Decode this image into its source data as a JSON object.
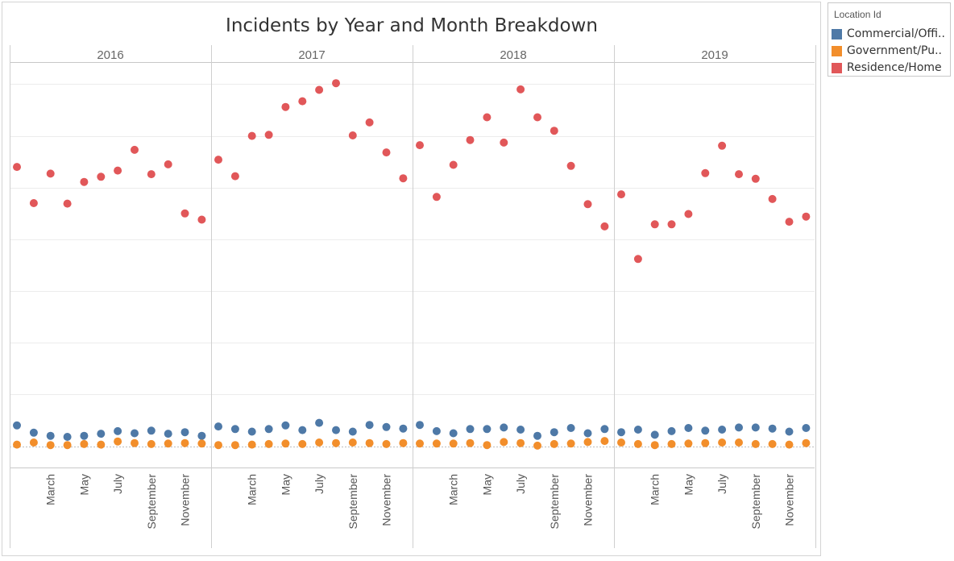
{
  "chart_data": {
    "type": "scatter",
    "title": "Incidents by Year and Month Breakdown",
    "panels": [
      "2016",
      "2017",
      "2018",
      "2019"
    ],
    "x_tick_labels": [
      "March",
      "May",
      "July",
      "September",
      "November"
    ],
    "x_tick_months": [
      3,
      5,
      7,
      9,
      11
    ],
    "months": [
      1,
      2,
      3,
      4,
      5,
      6,
      7,
      8,
      9,
      10,
      11,
      12
    ],
    "ylim": [
      -20,
      780
    ],
    "y_gridlines": [
      0,
      100,
      200,
      300,
      400,
      500,
      600,
      700
    ],
    "grid": true,
    "legend_title": "Location Id",
    "legend_position": "top-right",
    "series": [
      {
        "name": "Commercial/Offi..",
        "color": "#4e79a7",
        "values": {
          "2016": [
            40,
            26,
            20,
            18,
            20,
            24,
            29,
            25,
            30,
            24,
            27,
            20
          ],
          "2017": [
            38,
            33,
            28,
            33,
            40,
            31,
            45,
            31,
            28,
            41,
            37,
            34
          ],
          "2018": [
            41,
            29,
            25,
            33,
            33,
            36,
            32,
            20,
            27,
            35,
            25,
            33
          ],
          "2019": [
            27,
            32,
            22,
            29,
            35,
            30,
            32,
            36,
            36,
            34,
            28,
            35
          ]
        }
      },
      {
        "name": "Government/Pu..",
        "color": "#f28e2b",
        "values": {
          "2016": [
            3,
            7,
            2,
            2,
            4,
            3,
            9,
            6,
            4,
            5,
            6,
            5
          ],
          "2017": [
            2,
            2,
            3,
            4,
            5,
            4,
            7,
            6,
            7,
            6,
            4,
            6
          ],
          "2018": [
            5,
            5,
            5,
            6,
            2,
            8,
            6,
            1,
            4,
            5,
            8,
            10
          ],
          "2019": [
            7,
            4,
            2,
            4,
            5,
            6,
            7,
            7,
            4,
            4,
            3,
            6
          ]
        }
      },
      {
        "name": "Residence/Home",
        "color": "#e15759",
        "values": {
          "2016": [
            540,
            470,
            527,
            469,
            511,
            521,
            533,
            573,
            526,
            545,
            450,
            438
          ],
          "2017": [
            554,
            522,
            600,
            602,
            656,
            667,
            689,
            702,
            601,
            626,
            568,
            518
          ],
          "2018": [
            582,
            482,
            544,
            592,
            636,
            587,
            690,
            636,
            610,
            542,
            468,
            425
          ],
          "2019": [
            487,
            362,
            429,
            429,
            449,
            528,
            581,
            526,
            517,
            478,
            434,
            444
          ]
        }
      }
    ]
  }
}
